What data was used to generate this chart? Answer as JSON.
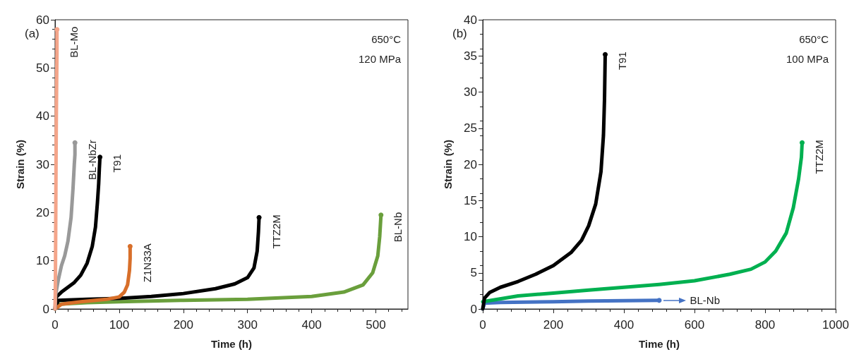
{
  "chart_data": [
    {
      "type": "line",
      "title": "(a)",
      "xlabel": "Time (h)",
      "ylabel": "Strain (%)",
      "annotations": [
        "650°C",
        "120 MPa"
      ],
      "xlim": [
        0,
        550
      ],
      "xticks": [
        0,
        100,
        200,
        300,
        400,
        500
      ],
      "ylim": [
        0,
        60
      ],
      "yticks": [
        0,
        10,
        20,
        30,
        40,
        50,
        60
      ],
      "grid": false,
      "series": [
        {
          "name": "BL-Mo",
          "color": "#f4a58a",
          "x": [
            0,
            0.5,
            1,
            1.5,
            2,
            2.5,
            3,
            3
          ],
          "values": [
            0,
            5,
            16,
            30,
            40,
            47,
            53,
            58
          ]
        },
        {
          "name": "BL-NbZr",
          "color": "#999999",
          "x": [
            0,
            1,
            5,
            10,
            15,
            20,
            25,
            28,
            30,
            31,
            31
          ],
          "values": [
            0,
            3,
            6,
            9,
            11,
            14,
            19,
            25,
            30,
            32,
            34.5
          ]
        },
        {
          "name": "T91",
          "color": "#000000",
          "x": [
            0,
            2,
            10,
            20,
            30,
            40,
            50,
            58,
            63,
            66,
            68,
            69,
            70
          ],
          "values": [
            0,
            2.5,
            3.5,
            4.5,
            5.5,
            7,
            9.5,
            13,
            17,
            22,
            26,
            29,
            31.5
          ]
        },
        {
          "name": "Z1N33A",
          "color": "#d86f2a",
          "x": [
            0,
            10,
            40,
            80,
            100,
            108,
            113,
            116,
            117,
            117
          ],
          "values": [
            0,
            1,
            1.5,
            2,
            2.5,
            3.5,
            5,
            8,
            10.5,
            13
          ]
        },
        {
          "name": "TTZ2M",
          "color": "#000000",
          "x": [
            0,
            5,
            50,
            100,
            150,
            200,
            250,
            280,
            300,
            310,
            315,
            317,
            318
          ],
          "values": [
            0,
            1.8,
            2,
            2.2,
            2.6,
            3.2,
            4.2,
            5.2,
            6.5,
            8.5,
            12,
            16,
            19
          ]
        },
        {
          "name": "BL-Nb",
          "color": "#6a9f3c",
          "x": [
            0,
            5,
            50,
            100,
            200,
            300,
            400,
            450,
            480,
            495,
            503,
            506,
            508
          ],
          "values": [
            0,
            1,
            1.3,
            1.5,
            1.8,
            2,
            2.6,
            3.5,
            5,
            7.5,
            11,
            15,
            19.5
          ]
        }
      ]
    },
    {
      "type": "line",
      "title": "(b)",
      "xlabel": "Time (h)",
      "ylabel": "Strain (%)",
      "annotations": [
        "650°C",
        "100 MPa"
      ],
      "xlim": [
        0,
        1000
      ],
      "xticks": [
        0,
        200,
        400,
        600,
        800,
        1000
      ],
      "ylim": [
        0,
        40
      ],
      "yticks": [
        0,
        5,
        10,
        15,
        20,
        25,
        30,
        35,
        40
      ],
      "grid": false,
      "series": [
        {
          "name": "T91",
          "color": "#000000",
          "x": [
            0,
            5,
            20,
            50,
            100,
            150,
            200,
            250,
            280,
            300,
            320,
            335,
            342,
            345,
            347
          ],
          "values": [
            0,
            1.5,
            2.3,
            3,
            3.8,
            4.8,
            6,
            7.8,
            9.5,
            11.5,
            14.5,
            19,
            24,
            29,
            35.2
          ]
        },
        {
          "name": "TTZ2M",
          "color": "#00b050",
          "x": [
            0,
            100,
            200,
            300,
            400,
            500,
            600,
            700,
            760,
            800,
            830,
            860,
            880,
            895,
            903,
            905
          ],
          "values": [
            1,
            1.8,
            2.2,
            2.6,
            3,
            3.4,
            3.9,
            4.8,
            5.5,
            6.5,
            8,
            10.5,
            14,
            18,
            21,
            23
          ]
        },
        {
          "name": "BL-Nb",
          "color": "#4472c4",
          "x": [
            0,
            5,
            50,
            200,
            300,
            500
          ],
          "values": [
            0,
            0.8,
            0.9,
            1,
            1.1,
            1.2
          ]
        }
      ]
    }
  ]
}
